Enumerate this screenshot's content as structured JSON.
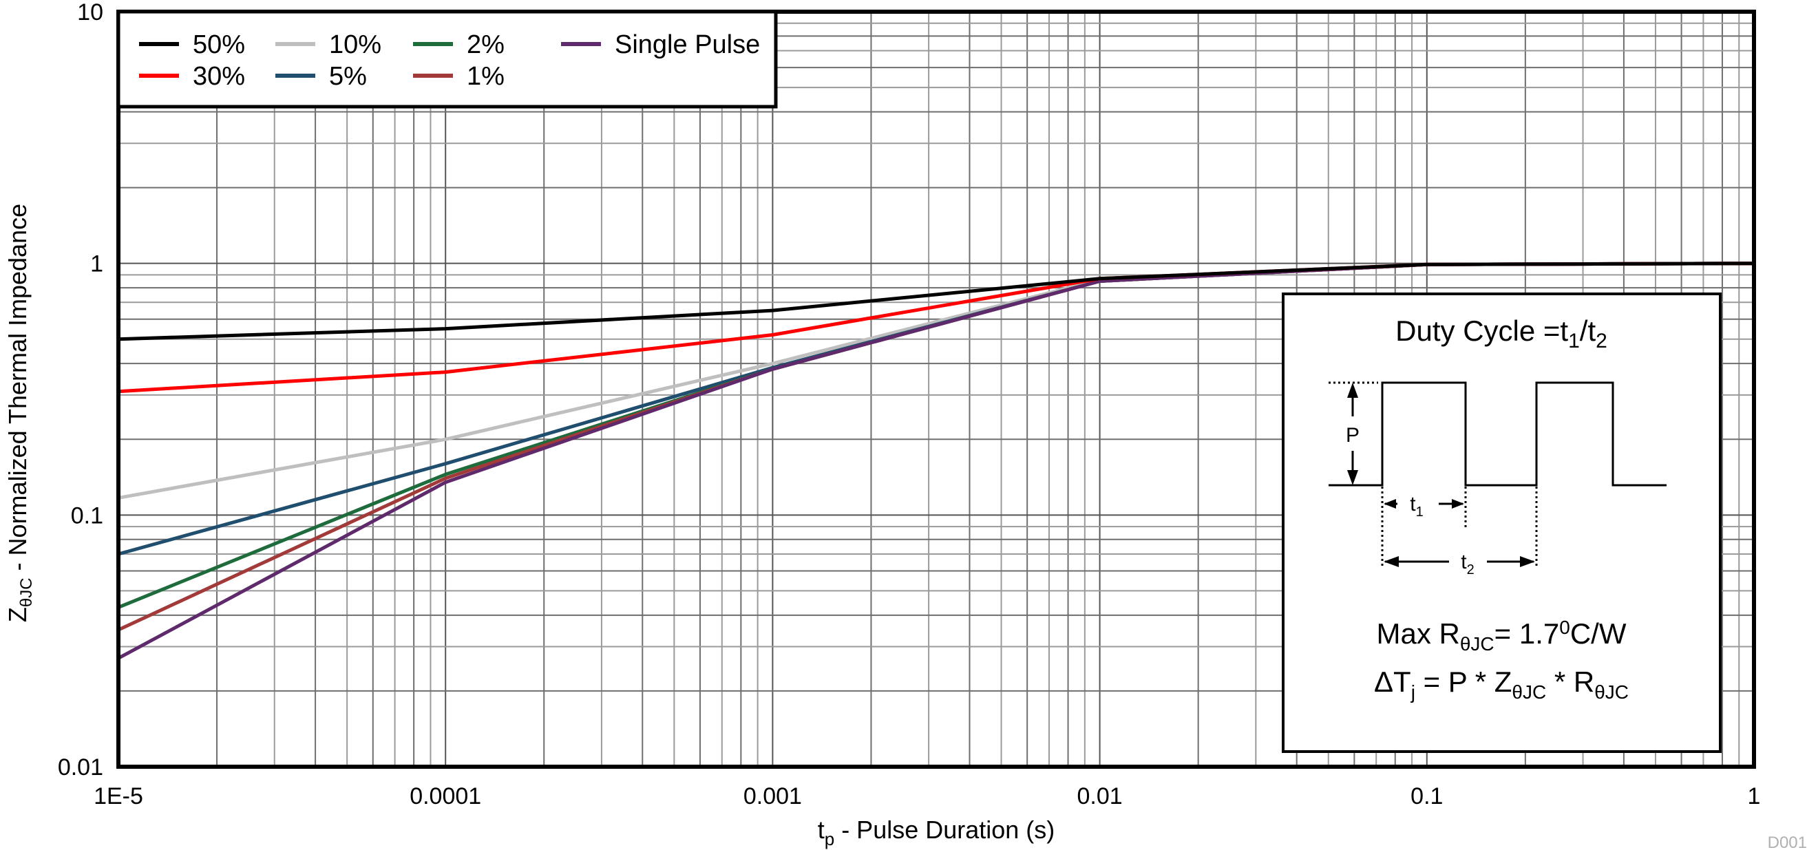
{
  "chart_data": {
    "type": "line",
    "title": "",
    "xlabel": "tp - Pulse Duration (s)",
    "xlabel_main": "t",
    "xlabel_sub": "p",
    "xlabel_rest": " - Pulse Duration (s)",
    "ylabel": "ZθJC - Normalized Thermal Impedance",
    "ylabel_main": "Z",
    "ylabel_sub": "θJC",
    "ylabel_rest": " - Normalized Thermal Impedance",
    "xscale": "log",
    "yscale": "log",
    "xlim": [
      1e-05,
      1
    ],
    "ylim": [
      0.01,
      10
    ],
    "grid": true,
    "legend_position": "upper-left",
    "x_ticks": [
      1e-05,
      0.0001,
      0.001,
      0.01,
      0.1,
      1
    ],
    "x_tick_labels": [
      "1E-5",
      "0.0001",
      "0.001",
      "0.01",
      "0.1",
      "1"
    ],
    "y_ticks": [
      0.01,
      0.1,
      1,
      10
    ],
    "y_tick_labels": [
      "0.01",
      "0.1",
      "1",
      "10"
    ],
    "x": [
      1e-05,
      0.0001,
      0.001,
      0.01,
      0.1,
      1
    ],
    "series": [
      {
        "name": "50%",
        "color": "#000000",
        "values": [
          0.5,
          0.55,
          0.65,
          0.87,
          0.99,
          1.0
        ]
      },
      {
        "name": "30%",
        "color": "#ff0000",
        "values": [
          0.31,
          0.37,
          0.52,
          0.87,
          0.99,
          1.0
        ]
      },
      {
        "name": "10%",
        "color": "#bfbfbf",
        "values": [
          0.117,
          0.2,
          0.4,
          0.86,
          0.99,
          1.0
        ]
      },
      {
        "name": "5%",
        "color": "#1f4e6e",
        "values": [
          0.07,
          0.16,
          0.385,
          0.85,
          0.99,
          1.0
        ]
      },
      {
        "name": "2%",
        "color": "#1e6b3c",
        "values": [
          0.043,
          0.145,
          0.38,
          0.85,
          0.99,
          1.0
        ]
      },
      {
        "name": "1%",
        "color": "#a33a3a",
        "values": [
          0.035,
          0.14,
          0.38,
          0.85,
          0.99,
          1.0
        ]
      },
      {
        "name": "Single Pulse",
        "color": "#5e2a6b",
        "values": [
          0.027,
          0.135,
          0.38,
          0.85,
          0.99,
          1.0
        ]
      }
    ],
    "legend": {
      "rows": [
        [
          "50%",
          "10%",
          "2%",
          "Single Pulse"
        ],
        [
          "30%",
          "5%",
          "1%"
        ]
      ]
    },
    "annotations": {
      "inset_title": "Duty Cycle =t1/t2",
      "inset_title_parts": {
        "prefix": "Duty Cycle =t",
        "sub1": "1",
        "slash": "/t",
        "sub2": "2"
      },
      "pulse_label_p": "P",
      "pulse_label_t1": "t",
      "pulse_label_t1_sub": "1",
      "pulse_label_t2": "t",
      "pulse_label_t2_sub": "2",
      "rth_line": "Max RθJC = 1.7°C/W",
      "rth_parts": {
        "prefix": "Max R",
        "sub": "θJC",
        "value": "= 1.7",
        "sup": "0",
        "unit": "C/W"
      },
      "dtj_line": "ΔTj = P * ZθJC * RθJC",
      "dtj_parts": {
        "a": "ΔT",
        "a_sub": "j",
        "b": " = P * Z",
        "b_sub": "θJC",
        "c": " * R",
        "c_sub": "θJC"
      }
    },
    "figure_id": "D001"
  }
}
